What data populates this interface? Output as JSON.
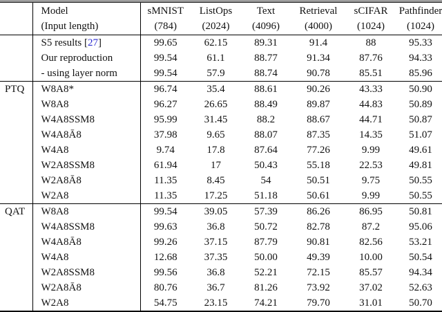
{
  "colors": {
    "citation_blue": "#2b2bd0",
    "rule_black": "#000000",
    "text_black": "#111111"
  },
  "header": {
    "model_line1": "Model",
    "model_line2": "(Input length)",
    "columns": [
      {
        "name": "sMNIST",
        "length": "(784)"
      },
      {
        "name": "ListOps",
        "length": "(2024)"
      },
      {
        "name": "Text",
        "length": "(4096)"
      },
      {
        "name": "Retrieval",
        "length": "(4000)"
      },
      {
        "name": "sCIFAR",
        "length": "(1024)"
      },
      {
        "name": "Pathfinder",
        "length": "(1024)"
      }
    ]
  },
  "sections": [
    {
      "label": "",
      "rows": [
        {
          "model": "S5 results [27]",
          "model_prefix": "S5 results [",
          "citation": "27",
          "model_suffix": "]",
          "values": [
            "99.65",
            "62.15",
            "89.31",
            "91.4",
            "88",
            "95.33"
          ]
        },
        {
          "model": "Our reproduction",
          "values": [
            "99.54",
            "61.1",
            "88.77",
            "91.34",
            "87.76",
            "94.33"
          ]
        },
        {
          "model": "- using layer norm",
          "values": [
            "99.54",
            "57.9",
            "88.74",
            "90.78",
            "85.51",
            "85.96"
          ]
        }
      ]
    },
    {
      "label": "PTQ",
      "rows": [
        {
          "model": "W8A8*",
          "values": [
            "96.74",
            "35.4",
            "88.61",
            "90.26",
            "43.33",
            "50.90"
          ]
        },
        {
          "model": "W8A8",
          "values": [
            "96.27",
            "26.65",
            "88.49",
            "89.87",
            "44.83",
            "50.89"
          ]
        },
        {
          "model": "W4A8SSM8",
          "values": [
            "95.99",
            "31.45",
            "88.2",
            "88.67",
            "44.71",
            "50.87"
          ]
        },
        {
          "model": "W4A8Ā8",
          "values": [
            "37.98",
            "9.65",
            "88.07",
            "87.35",
            "14.35",
            "51.07"
          ]
        },
        {
          "model": "W4A8",
          "values": [
            "9.74",
            "17.8",
            "87.64",
            "77.26",
            "9.99",
            "49.61"
          ]
        },
        {
          "model": "W2A8SSM8",
          "values": [
            "61.94",
            "17",
            "50.43",
            "55.18",
            "22.53",
            "49.81"
          ]
        },
        {
          "model": "W2A8Ā8",
          "values": [
            "11.35",
            "8.45",
            "54",
            "50.51",
            "9.75",
            "50.55"
          ]
        },
        {
          "model": "W2A8",
          "values": [
            "11.35",
            "17.25",
            "51.18",
            "50.61",
            "9.99",
            "50.55"
          ]
        }
      ]
    },
    {
      "label": "QAT",
      "rows": [
        {
          "model": "W8A8",
          "values": [
            "99.54",
            "39.05",
            "57.39",
            "86.26",
            "86.95",
            "50.81"
          ]
        },
        {
          "model": "W4A8SSM8",
          "values": [
            "99.63",
            "36.8",
            "50.72",
            "82.78",
            "87.2",
            "95.06"
          ]
        },
        {
          "model": "W4A8Ā8",
          "values": [
            "99.26",
            "37.15",
            "87.79",
            "90.81",
            "82.56",
            "53.21"
          ]
        },
        {
          "model": "W4A8",
          "values": [
            "12.68",
            "37.35",
            "50.00",
            "49.39",
            "10.00",
            "50.54"
          ]
        },
        {
          "model": "W2A8SSM8",
          "values": [
            "99.56",
            "36.8",
            "52.21",
            "72.15",
            "85.57",
            "94.34"
          ]
        },
        {
          "model": "W2A8Ā8",
          "values": [
            "80.76",
            "36.7",
            "81.26",
            "73.92",
            "37.02",
            "52.63"
          ]
        },
        {
          "model": "W2A8",
          "values": [
            "54.75",
            "23.15",
            "74.21",
            "79.70",
            "31.01",
            "50.70"
          ]
        }
      ]
    }
  ]
}
